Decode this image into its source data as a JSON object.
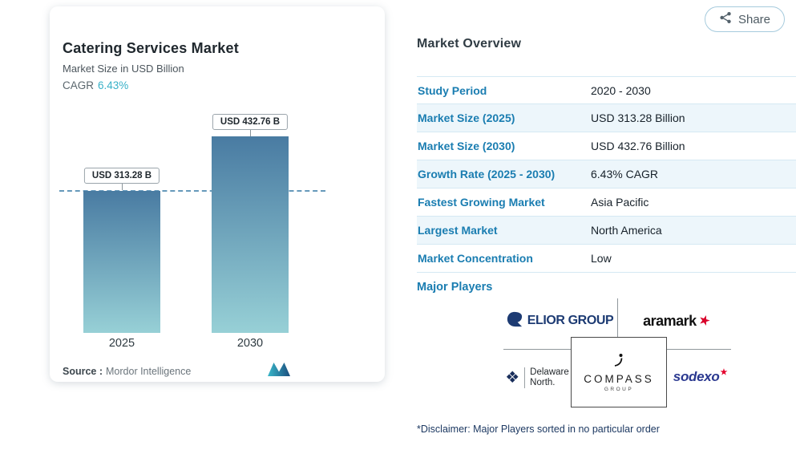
{
  "share": {
    "label": "Share"
  },
  "chart_card": {
    "title": "Catering Services Market",
    "subtitle": "Market Size in USD Billion",
    "cagr_label": "CAGR",
    "cagr_value": "6.43%",
    "source_label": "Source :",
    "source_value": "Mordor Intelligence"
  },
  "chart_data": {
    "type": "bar",
    "title": "Catering Services Market",
    "ylabel": "Market Size in USD Billion",
    "categories": [
      "2025",
      "2030"
    ],
    "values": [
      313.28,
      432.76
    ],
    "value_labels": [
      "USD 313.28 B",
      "USD 432.76 B"
    ],
    "cagr_percent": 6.43,
    "reference_line_value": 313.28,
    "ylim": [
      0,
      450
    ],
    "bar_gradient": [
      "#497ba2",
      "#97d0d6"
    ],
    "legend": "none",
    "grid": "off"
  },
  "overview": {
    "heading": "Market Overview",
    "rows": [
      {
        "label": "Study Period",
        "value": "2020 - 2030"
      },
      {
        "label": "Market Size (2025)",
        "value": "USD 313.28 Billion"
      },
      {
        "label": "Market Size (2030)",
        "value": "USD 432.76 Billion"
      },
      {
        "label": "Growth Rate (2025 - 2030)",
        "value": "6.43% CAGR"
      },
      {
        "label": "Fastest Growing Market",
        "value": "Asia Pacific"
      },
      {
        "label": "Largest Market",
        "value": "North America"
      },
      {
        "label": "Market Concentration",
        "value": "Low"
      }
    ],
    "major_players_label": "Major Players",
    "disclaimer": "*Disclaimer: Major Players sorted in no particular order"
  },
  "players": {
    "elior": {
      "name": "Elior Group",
      "text": "ELIOR GROUP"
    },
    "aramark": {
      "name": "Aramark",
      "text": "aramark"
    },
    "delaware": {
      "name": "Delaware North",
      "line1": "Delaware",
      "line2": "North."
    },
    "compass": {
      "name": "Compass Group",
      "line1": "COMPASS",
      "line2": "GROUP"
    },
    "sodexo": {
      "name": "Sodexo",
      "text": "sodexo"
    }
  },
  "colors": {
    "accent_blue": "#1a7db1",
    "teal": "#38b1c8",
    "bar_top": "#497ba2",
    "bar_bottom": "#97d0d6"
  }
}
